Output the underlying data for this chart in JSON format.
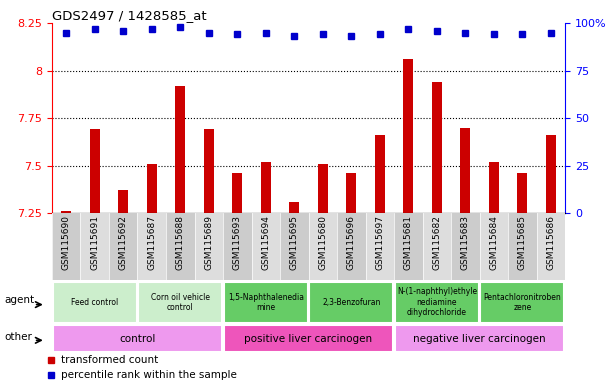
{
  "title": "GDS2497 / 1428585_at",
  "samples": [
    "GSM115690",
    "GSM115691",
    "GSM115692",
    "GSM115687",
    "GSM115688",
    "GSM115689",
    "GSM115693",
    "GSM115694",
    "GSM115695",
    "GSM115680",
    "GSM115696",
    "GSM115697",
    "GSM115681",
    "GSM115682",
    "GSM115683",
    "GSM115684",
    "GSM115685",
    "GSM115686"
  ],
  "bar_values": [
    7.26,
    7.69,
    7.37,
    7.51,
    7.92,
    7.69,
    7.46,
    7.52,
    7.31,
    7.51,
    7.46,
    7.66,
    8.06,
    7.94,
    7.7,
    7.52,
    7.46,
    7.66
  ],
  "dot_values": [
    95,
    97,
    96,
    97,
    98,
    95,
    94,
    95,
    93,
    94,
    93,
    94,
    97,
    96,
    95,
    94,
    94,
    95
  ],
  "ylim_left": [
    7.25,
    8.25
  ],
  "ylim_right": [
    0,
    100
  ],
  "yticks_left": [
    7.25,
    7.5,
    7.75,
    8.0,
    8.25
  ],
  "ytick_labels_left": [
    "7.25",
    "7.5",
    "7.75",
    "8",
    "8.25"
  ],
  "yticks_right": [
    0,
    25,
    50,
    75,
    100
  ],
  "ytick_labels_right": [
    "0",
    "25",
    "50",
    "75",
    "100%"
  ],
  "hlines": [
    7.5,
    7.75,
    8.0
  ],
  "bar_color": "#cc0000",
  "dot_color": "#0000cc",
  "chart_bg": "#ffffff",
  "agent_labels": [
    {
      "text": "Feed control",
      "start": 0,
      "end": 3,
      "color": "#cceecc"
    },
    {
      "text": "Corn oil vehicle\ncontrol",
      "start": 3,
      "end": 6,
      "color": "#cceecc"
    },
    {
      "text": "1,5-Naphthalenedia\nmine",
      "start": 6,
      "end": 9,
      "color": "#66cc66"
    },
    {
      "text": "2,3-Benzofuran",
      "start": 9,
      "end": 12,
      "color": "#66cc66"
    },
    {
      "text": "N-(1-naphthyl)ethyle\nnediamine\ndihydrochloride",
      "start": 12,
      "end": 15,
      "color": "#66cc66"
    },
    {
      "text": "Pentachloronitroben\nzene",
      "start": 15,
      "end": 18,
      "color": "#66cc66"
    }
  ],
  "other_labels": [
    {
      "text": "control",
      "start": 0,
      "end": 6,
      "color": "#ee99ee"
    },
    {
      "text": "positive liver carcinogen",
      "start": 6,
      "end": 12,
      "color": "#ee55bb"
    },
    {
      "text": "negative liver carcinogen",
      "start": 12,
      "end": 18,
      "color": "#ee99ee"
    }
  ],
  "legend_items": [
    {
      "label": "transformed count",
      "color": "#cc0000"
    },
    {
      "label": "percentile rank within the sample",
      "color": "#0000cc"
    }
  ],
  "xlabel_bg": "#dddddd",
  "agent_bg": "#ffffff",
  "other_bg": "#ffffff",
  "fig_width": 6.11,
  "fig_height": 3.84,
  "dpi": 100
}
